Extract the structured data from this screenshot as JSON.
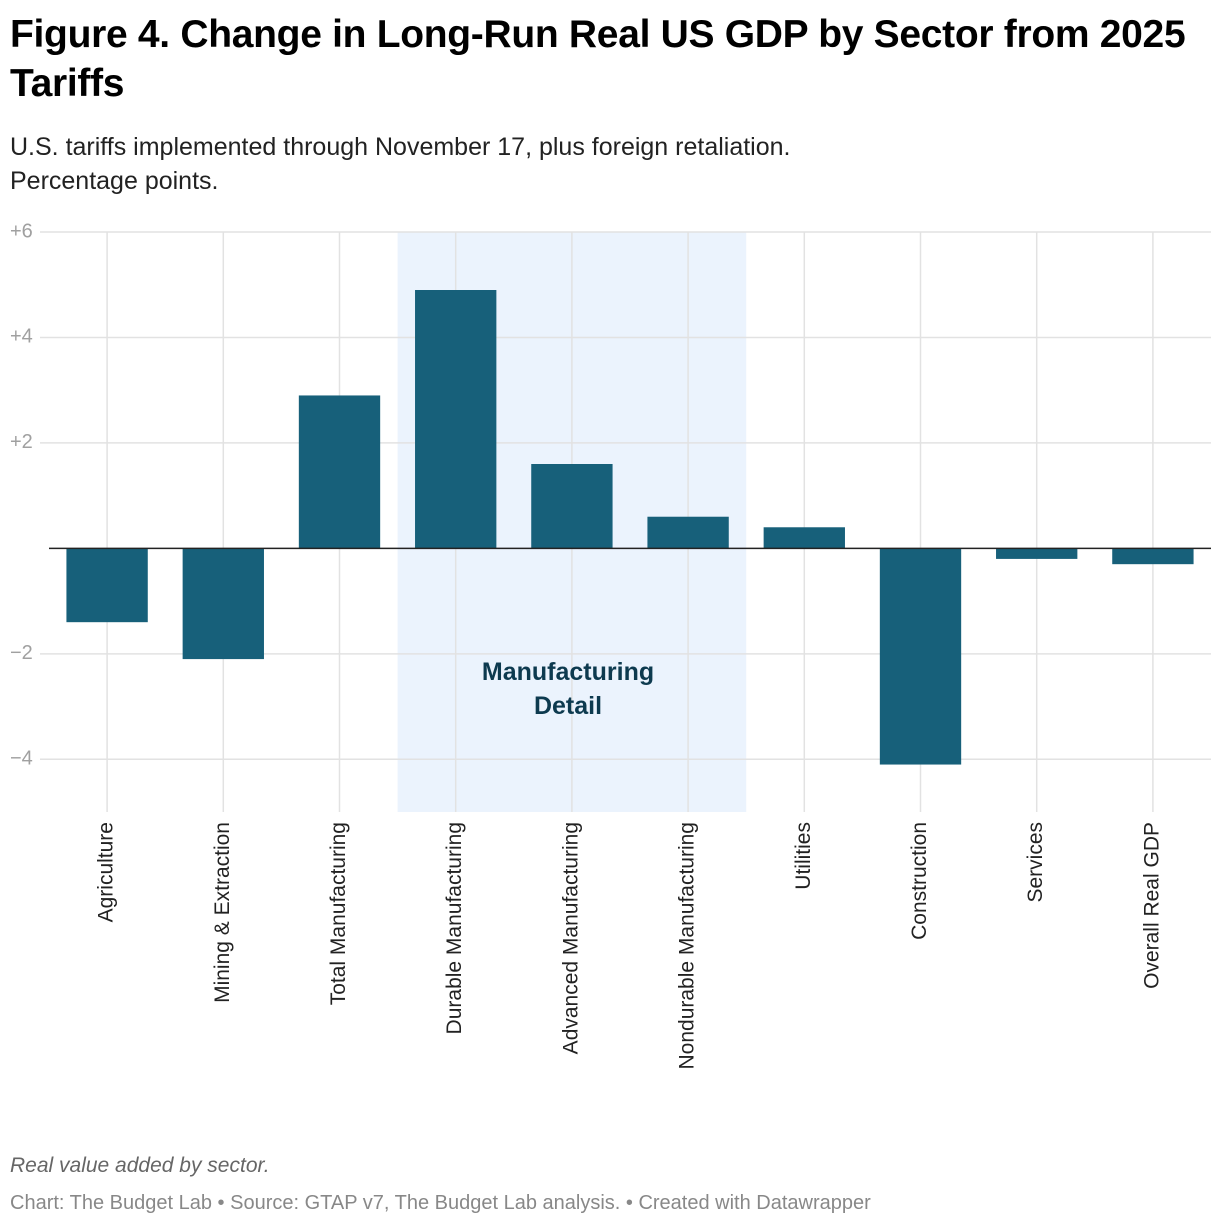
{
  "chart_data": {
    "type": "bar",
    "title": "Figure 4. Change in Long-Run Real US GDP by Sector from 2025 Tariffs",
    "subtitle": "U.S. tariffs implemented through November 17, plus foreign retaliation.\nPercentage points.",
    "categories": [
      "Agriculture",
      "Mining & Extraction",
      "Total Manufacturing",
      "Durable Manufacturing",
      "Advanced Manufacturing",
      "Nondurable Manufacturing",
      "Utilities",
      "Construction",
      "Services",
      "Overall Real GDP"
    ],
    "values": [
      -1.4,
      -2.1,
      2.9,
      4.9,
      1.6,
      0.6,
      0.4,
      -4.1,
      -0.2,
      -0.3
    ],
    "color": "#17607a",
    "ylim": [
      -5,
      6
    ],
    "yticks": [
      {
        "value": -4,
        "label": "−4"
      },
      {
        "value": -2,
        "label": "−2"
      },
      {
        "value": 2,
        "label": "+2"
      },
      {
        "value": 4,
        "label": "+4"
      },
      {
        "value": 6,
        "label": "+6"
      }
    ],
    "grid": true,
    "highlight": {
      "start": 3,
      "end": 5,
      "color": "#ebf3fd",
      "label": "Manufacturing\nDetail"
    },
    "note": "Real value added by sector.",
    "source": "Chart: The Budget Lab • Source: GTAP v7, The Budget Lab analysis. • Created with Datawrapper"
  }
}
